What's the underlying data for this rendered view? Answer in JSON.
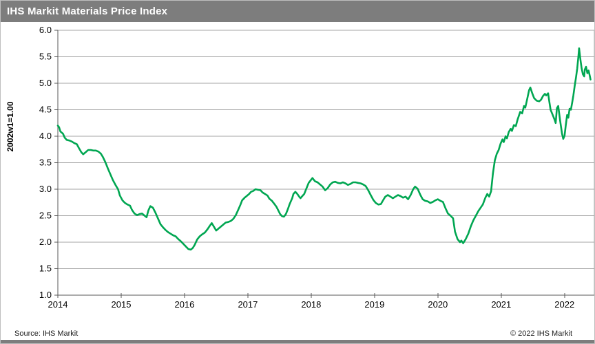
{
  "header": {
    "title": "IHS Markit Materials Price Index"
  },
  "footer": {
    "source": "Source:  IHS Markit",
    "copyright": "© 2022  IHS Markit"
  },
  "colors": {
    "line_green": "#00a651",
    "bar_gray": "#7d7d7d",
    "grid_gray": "#a6a6a6",
    "axis_gray": "#595959"
  },
  "chart_data": {
    "type": "line",
    "title": "IHS Markit Materials Price Index",
    "xlabel": "",
    "ylabel": "2002w1=1.00",
    "xlim": [
      2014,
      2022.47
    ],
    "ylim": [
      1.0,
      6.0
    ],
    "x_ticks": [
      2014,
      2015,
      2016,
      2017,
      2018,
      2019,
      2020,
      2021,
      2022
    ],
    "y_ticks": [
      1.0,
      1.5,
      2.0,
      2.5,
      3.0,
      3.5,
      4.0,
      4.5,
      5.0,
      5.5,
      6.0
    ],
    "grid": "horizontal",
    "legend": "none",
    "series": [
      {
        "name": "IHS Markit Materials Price Index",
        "color": "#00a651",
        "points": [
          [
            2014.0,
            4.2
          ],
          [
            2014.02,
            4.17
          ],
          [
            2014.04,
            4.09
          ],
          [
            2014.08,
            4.05
          ],
          [
            2014.11,
            3.97
          ],
          [
            2014.14,
            3.93
          ],
          [
            2014.18,
            3.92
          ],
          [
            2014.22,
            3.9
          ],
          [
            2014.26,
            3.87
          ],
          [
            2014.3,
            3.85
          ],
          [
            2014.33,
            3.78
          ],
          [
            2014.37,
            3.7
          ],
          [
            2014.4,
            3.66
          ],
          [
            2014.44,
            3.7
          ],
          [
            2014.48,
            3.74
          ],
          [
            2014.52,
            3.74
          ],
          [
            2014.56,
            3.73
          ],
          [
            2014.6,
            3.73
          ],
          [
            2014.64,
            3.71
          ],
          [
            2014.68,
            3.67
          ],
          [
            2014.71,
            3.61
          ],
          [
            2014.75,
            3.51
          ],
          [
            2014.79,
            3.39
          ],
          [
            2014.83,
            3.28
          ],
          [
            2014.87,
            3.17
          ],
          [
            2014.91,
            3.08
          ],
          [
            2014.95,
            3.0
          ],
          [
            2014.98,
            2.88
          ],
          [
            2015.02,
            2.79
          ],
          [
            2015.06,
            2.74
          ],
          [
            2015.1,
            2.71
          ],
          [
            2015.14,
            2.69
          ],
          [
            2015.17,
            2.61
          ],
          [
            2015.21,
            2.54
          ],
          [
            2015.25,
            2.51
          ],
          [
            2015.29,
            2.53
          ],
          [
            2015.33,
            2.54
          ],
          [
            2015.37,
            2.5
          ],
          [
            2015.4,
            2.47
          ],
          [
            2015.43,
            2.6
          ],
          [
            2015.46,
            2.68
          ],
          [
            2015.5,
            2.65
          ],
          [
            2015.54,
            2.56
          ],
          [
            2015.58,
            2.45
          ],
          [
            2015.62,
            2.34
          ],
          [
            2015.66,
            2.28
          ],
          [
            2015.7,
            2.23
          ],
          [
            2015.74,
            2.19
          ],
          [
            2015.78,
            2.16
          ],
          [
            2015.82,
            2.13
          ],
          [
            2015.86,
            2.11
          ],
          [
            2015.9,
            2.06
          ],
          [
            2015.94,
            2.02
          ],
          [
            2015.98,
            1.97
          ],
          [
            2016.02,
            1.92
          ],
          [
            2016.06,
            1.87
          ],
          [
            2016.1,
            1.86
          ],
          [
            2016.13,
            1.89
          ],
          [
            2016.16,
            1.95
          ],
          [
            2016.2,
            2.05
          ],
          [
            2016.24,
            2.11
          ],
          [
            2016.28,
            2.15
          ],
          [
            2016.32,
            2.18
          ],
          [
            2016.36,
            2.24
          ],
          [
            2016.4,
            2.31
          ],
          [
            2016.43,
            2.36
          ],
          [
            2016.46,
            2.3
          ],
          [
            2016.5,
            2.22
          ],
          [
            2016.54,
            2.26
          ],
          [
            2016.58,
            2.3
          ],
          [
            2016.61,
            2.33
          ],
          [
            2016.65,
            2.37
          ],
          [
            2016.69,
            2.38
          ],
          [
            2016.73,
            2.4
          ],
          [
            2016.77,
            2.44
          ],
          [
            2016.81,
            2.51
          ],
          [
            2016.84,
            2.59
          ],
          [
            2016.88,
            2.7
          ],
          [
            2016.91,
            2.79
          ],
          [
            2016.95,
            2.84
          ],
          [
            2016.98,
            2.87
          ],
          [
            2017.02,
            2.91
          ],
          [
            2017.05,
            2.95
          ],
          [
            2017.09,
            2.97
          ],
          [
            2017.12,
            3.0
          ],
          [
            2017.16,
            2.99
          ],
          [
            2017.2,
            2.98
          ],
          [
            2017.23,
            2.94
          ],
          [
            2017.27,
            2.91
          ],
          [
            2017.31,
            2.88
          ],
          [
            2017.34,
            2.82
          ],
          [
            2017.38,
            2.78
          ],
          [
            2017.42,
            2.72
          ],
          [
            2017.45,
            2.67
          ],
          [
            2017.48,
            2.6
          ],
          [
            2017.51,
            2.53
          ],
          [
            2017.54,
            2.49
          ],
          [
            2017.57,
            2.48
          ],
          [
            2017.6,
            2.53
          ],
          [
            2017.63,
            2.62
          ],
          [
            2017.66,
            2.72
          ],
          [
            2017.7,
            2.83
          ],
          [
            2017.72,
            2.91
          ],
          [
            2017.75,
            2.95
          ],
          [
            2017.78,
            2.91
          ],
          [
            2017.81,
            2.86
          ],
          [
            2017.83,
            2.83
          ],
          [
            2017.86,
            2.87
          ],
          [
            2017.89,
            2.91
          ],
          [
            2017.92,
            3.0
          ],
          [
            2017.96,
            3.12
          ],
          [
            2018.0,
            3.18
          ],
          [
            2018.02,
            3.21
          ],
          [
            2018.06,
            3.15
          ],
          [
            2018.1,
            3.13
          ],
          [
            2018.14,
            3.09
          ],
          [
            2018.18,
            3.05
          ],
          [
            2018.22,
            2.98
          ],
          [
            2018.26,
            3.02
          ],
          [
            2018.3,
            3.09
          ],
          [
            2018.34,
            3.13
          ],
          [
            2018.38,
            3.14
          ],
          [
            2018.42,
            3.12
          ],
          [
            2018.46,
            3.11
          ],
          [
            2018.5,
            3.13
          ],
          [
            2018.54,
            3.11
          ],
          [
            2018.58,
            3.08
          ],
          [
            2018.62,
            3.1
          ],
          [
            2018.66,
            3.13
          ],
          [
            2018.7,
            3.13
          ],
          [
            2018.74,
            3.12
          ],
          [
            2018.78,
            3.11
          ],
          [
            2018.82,
            3.09
          ],
          [
            2018.86,
            3.06
          ],
          [
            2018.9,
            2.98
          ],
          [
            2018.94,
            2.89
          ],
          [
            2018.98,
            2.8
          ],
          [
            2019.02,
            2.74
          ],
          [
            2019.06,
            2.71
          ],
          [
            2019.1,
            2.72
          ],
          [
            2019.14,
            2.8
          ],
          [
            2019.17,
            2.86
          ],
          [
            2019.21,
            2.89
          ],
          [
            2019.25,
            2.86
          ],
          [
            2019.29,
            2.83
          ],
          [
            2019.33,
            2.86
          ],
          [
            2019.37,
            2.89
          ],
          [
            2019.41,
            2.87
          ],
          [
            2019.45,
            2.84
          ],
          [
            2019.49,
            2.86
          ],
          [
            2019.53,
            2.81
          ],
          [
            2019.57,
            2.89
          ],
          [
            2019.61,
            3.0
          ],
          [
            2019.64,
            3.05
          ],
          [
            2019.68,
            3.01
          ],
          [
            2019.72,
            2.9
          ],
          [
            2019.76,
            2.81
          ],
          [
            2019.8,
            2.78
          ],
          [
            2019.84,
            2.77
          ],
          [
            2019.88,
            2.74
          ],
          [
            2019.92,
            2.76
          ],
          [
            2019.96,
            2.79
          ],
          [
            2020.0,
            2.81
          ],
          [
            2020.04,
            2.78
          ],
          [
            2020.08,
            2.76
          ],
          [
            2020.12,
            2.64
          ],
          [
            2020.16,
            2.54
          ],
          [
            2020.2,
            2.5
          ],
          [
            2020.24,
            2.45
          ],
          [
            2020.27,
            2.2
          ],
          [
            2020.31,
            2.06
          ],
          [
            2020.35,
            2.0
          ],
          [
            2020.37,
            2.03
          ],
          [
            2020.4,
            1.98
          ],
          [
            2020.44,
            2.06
          ],
          [
            2020.48,
            2.16
          ],
          [
            2020.52,
            2.3
          ],
          [
            2020.56,
            2.41
          ],
          [
            2020.6,
            2.5
          ],
          [
            2020.64,
            2.59
          ],
          [
            2020.68,
            2.66
          ],
          [
            2020.71,
            2.71
          ],
          [
            2020.75,
            2.84
          ],
          [
            2020.78,
            2.91
          ],
          [
            2020.81,
            2.86
          ],
          [
            2020.84,
            2.96
          ],
          [
            2020.87,
            3.3
          ],
          [
            2020.9,
            3.55
          ],
          [
            2020.93,
            3.67
          ],
          [
            2020.96,
            3.74
          ],
          [
            2020.99,
            3.86
          ],
          [
            2021.02,
            3.94
          ],
          [
            2021.04,
            3.89
          ],
          [
            2021.07,
            4.0
          ],
          [
            2021.09,
            3.96
          ],
          [
            2021.12,
            4.08
          ],
          [
            2021.15,
            4.14
          ],
          [
            2021.17,
            4.1
          ],
          [
            2021.2,
            4.21
          ],
          [
            2021.23,
            4.19
          ],
          [
            2021.26,
            4.32
          ],
          [
            2021.3,
            4.46
          ],
          [
            2021.33,
            4.43
          ],
          [
            2021.36,
            4.57
          ],
          [
            2021.38,
            4.54
          ],
          [
            2021.41,
            4.7
          ],
          [
            2021.44,
            4.87
          ],
          [
            2021.46,
            4.92
          ],
          [
            2021.49,
            4.81
          ],
          [
            2021.52,
            4.72
          ],
          [
            2021.56,
            4.67
          ],
          [
            2021.6,
            4.66
          ],
          [
            2021.63,
            4.69
          ],
          [
            2021.66,
            4.76
          ],
          [
            2021.69,
            4.8
          ],
          [
            2021.71,
            4.77
          ],
          [
            2021.74,
            4.81
          ],
          [
            2021.76,
            4.65
          ],
          [
            2021.78,
            4.5
          ],
          [
            2021.81,
            4.41
          ],
          [
            2021.84,
            4.32
          ],
          [
            2021.86,
            4.25
          ],
          [
            2021.88,
            4.53
          ],
          [
            2021.9,
            4.57
          ],
          [
            2021.93,
            4.3
          ],
          [
            2021.96,
            4.05
          ],
          [
            2021.98,
            3.95
          ],
          [
            2022.0,
            4.01
          ],
          [
            2022.02,
            4.21
          ],
          [
            2022.04,
            4.4
          ],
          [
            2022.06,
            4.35
          ],
          [
            2022.08,
            4.52
          ],
          [
            2022.1,
            4.5
          ],
          [
            2022.12,
            4.63
          ],
          [
            2022.14,
            4.77
          ],
          [
            2022.16,
            4.95
          ],
          [
            2022.18,
            5.1
          ],
          [
            2022.2,
            5.28
          ],
          [
            2022.22,
            5.52
          ],
          [
            2022.23,
            5.66
          ],
          [
            2022.25,
            5.45
          ],
          [
            2022.27,
            5.28
          ],
          [
            2022.29,
            5.17
          ],
          [
            2022.31,
            5.13
          ],
          [
            2022.32,
            5.26
          ],
          [
            2022.34,
            5.31
          ],
          [
            2022.36,
            5.19
          ],
          [
            2022.38,
            5.24
          ],
          [
            2022.4,
            5.13
          ],
          [
            2022.41,
            5.07
          ]
        ]
      }
    ]
  }
}
